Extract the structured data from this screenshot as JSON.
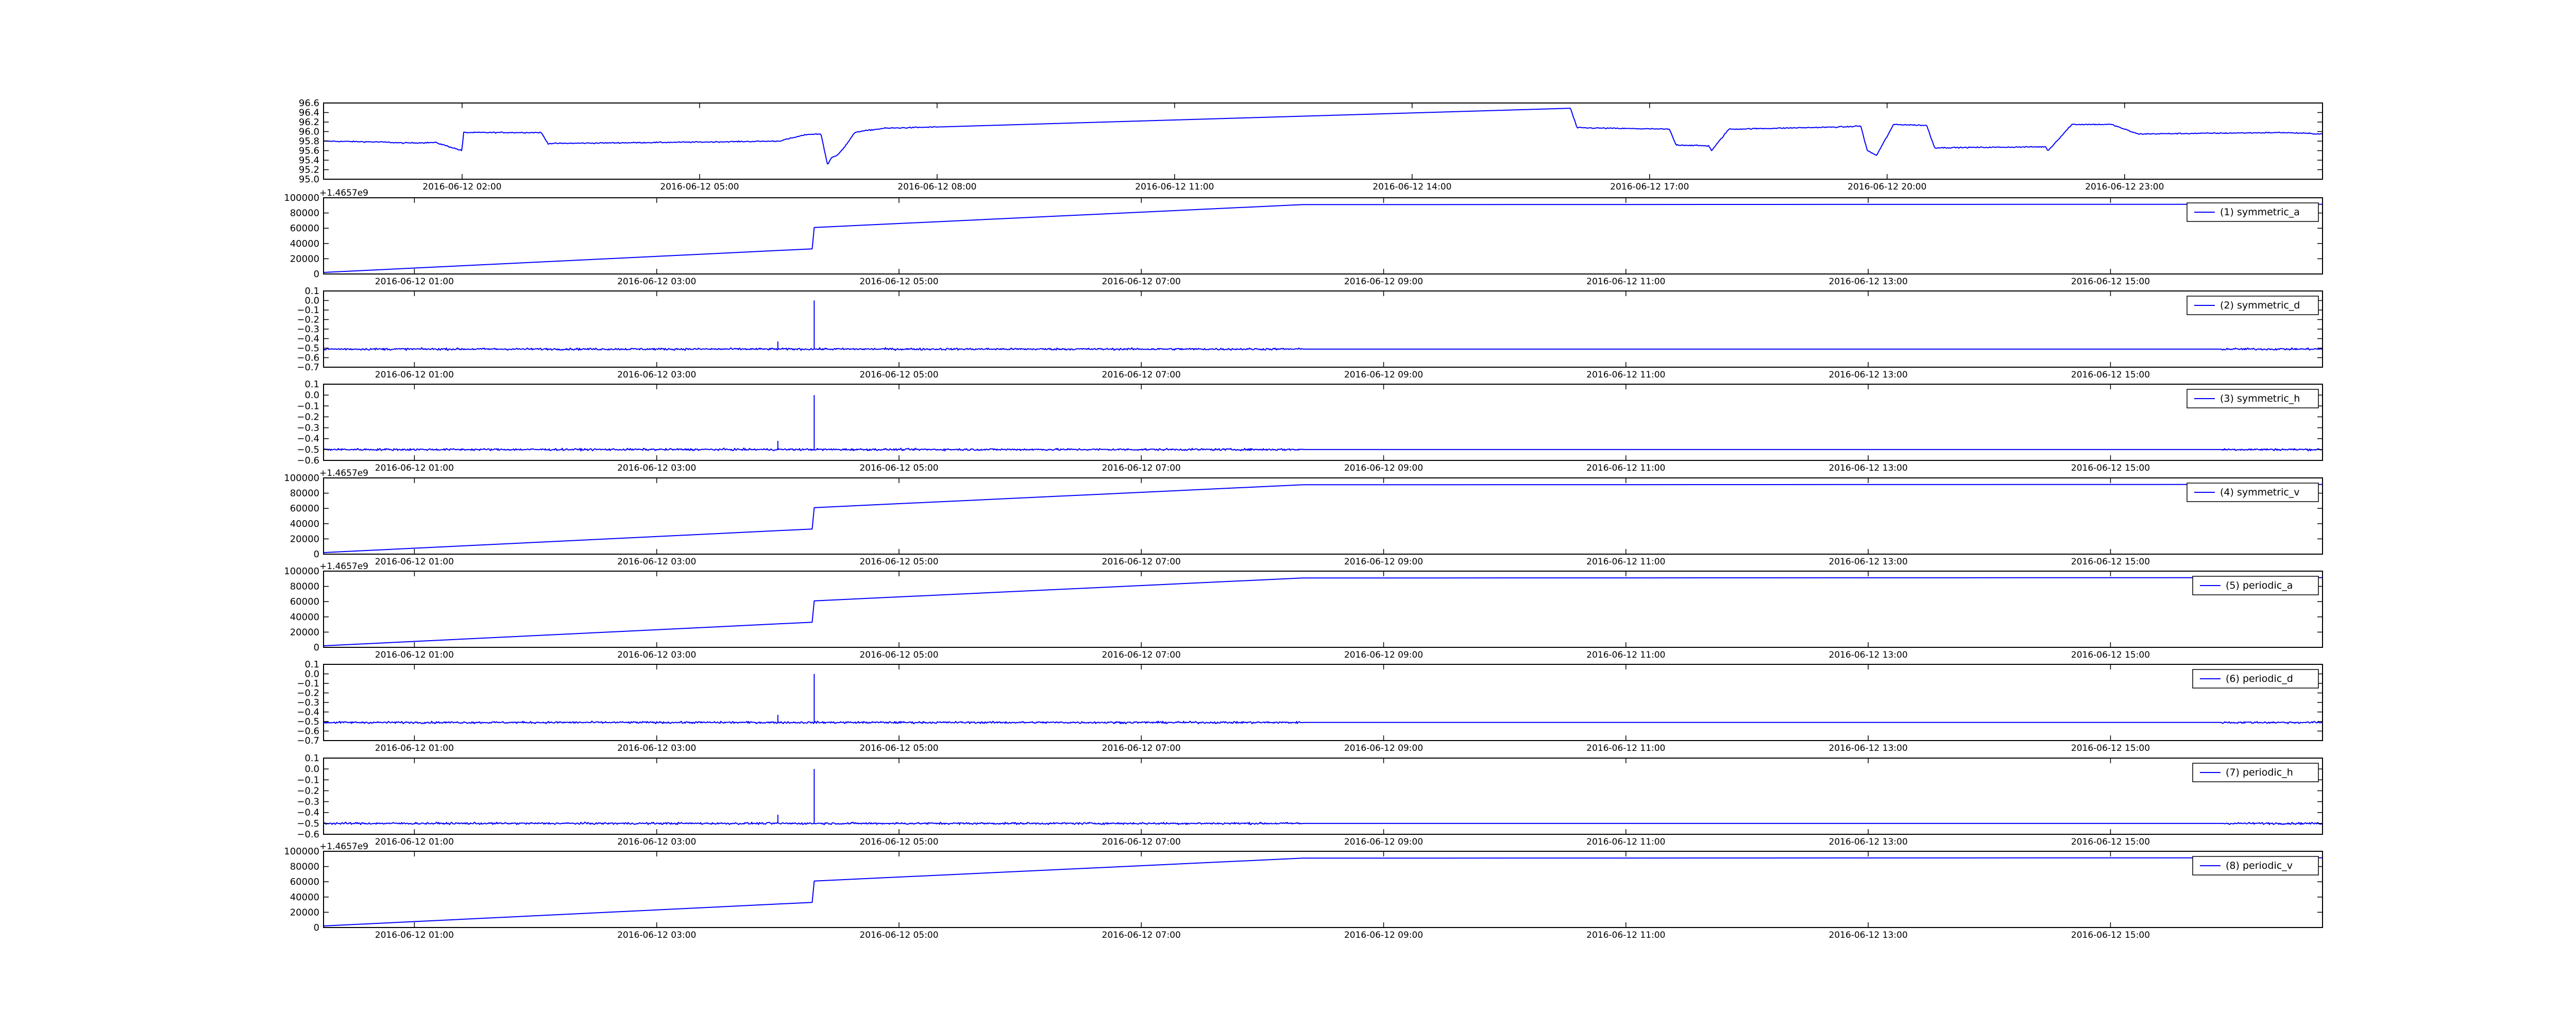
{
  "figure": {
    "line_color": "#0000ff",
    "axes_color": "#000000",
    "background": "#ffffff"
  },
  "chart_data": [
    {
      "type": "line",
      "title": "",
      "legend": null,
      "ylim": [
        95.0,
        96.6
      ],
      "yticks": [
        "95.0",
        "95.2",
        "95.4",
        "95.6",
        "95.8",
        "96.0",
        "96.2",
        "96.4",
        "96.6"
      ],
      "xlim": [
        "2016-06-12 00:15",
        "2016-06-13 01:30"
      ],
      "xticks": [
        "2016-06-12 02:00",
        "2016-06-12 05:00",
        "2016-06-12 08:00",
        "2016-06-12 11:00",
        "2016-06-12 14:00",
        "2016-06-12 17:00",
        "2016-06-12 20:00",
        "2016-06-12 23:00"
      ],
      "series": [
        {
          "x": [
            "2016-06-12 00:15",
            "2016-06-12 01:00",
            "2016-06-12 01:15",
            "2016-06-12 01:40",
            "2016-06-12 02:00",
            "2016-06-12 02:01",
            "2016-06-12 03:00",
            "2016-06-12 03:05",
            "2016-06-12 05:00",
            "2016-06-12 06:00",
            "2016-06-12 06:20",
            "2016-06-12 06:21",
            "2016-06-12 06:32",
            "2016-06-12 06:37",
            "2016-06-12 06:40",
            "2016-06-12 06:44",
            "2016-06-12 06:50",
            "2016-06-12 06:58",
            "2016-06-12 07:20",
            "2016-06-12 08:05",
            "2016-06-12 16:00",
            "2016-06-12 16:05",
            "2016-06-12 17:15",
            "2016-06-12 17:20",
            "2016-06-12 17:45",
            "2016-06-12 17:47",
            "2016-06-12 18:00",
            "2016-06-12 19:30",
            "2016-06-12 19:40",
            "2016-06-12 19:45",
            "2016-06-12 19:52",
            "2016-06-12 20:05",
            "2016-06-12 20:30",
            "2016-06-12 20:36",
            "2016-06-12 22:00",
            "2016-06-12 22:02",
            "2016-06-12 22:20",
            "2016-06-12 22:50",
            "2016-06-12 23:10",
            "2016-06-13 01:00",
            "2016-06-13 01:30"
          ],
          "values": [
            95.8,
            95.78,
            95.76,
            95.77,
            95.6,
            95.98,
            95.98,
            95.75,
            95.78,
            95.8,
            95.93,
            95.94,
            95.95,
            95.3,
            95.45,
            95.5,
            95.68,
            95.99,
            96.07,
            96.1,
            96.49,
            96.08,
            96.05,
            95.72,
            95.7,
            95.6,
            96.05,
            96.1,
            96.12,
            95.6,
            95.5,
            96.15,
            96.13,
            95.66,
            95.68,
            95.6,
            96.15,
            96.15,
            95.95,
            95.98,
            95.95
          ]
        }
      ],
      "noise": "small"
    },
    {
      "type": "line",
      "title": "",
      "offset_label": "+1.4657e9",
      "ylim": [
        0,
        100000
      ],
      "yticks": [
        "0",
        "20000",
        "40000",
        "60000",
        "80000",
        "100000"
      ],
      "xlim": [
        "2016-06-12 00:15",
        "2016-06-12 16:45"
      ],
      "xticks": [
        "2016-06-12 01:00",
        "2016-06-12 03:00",
        "2016-06-12 05:00",
        "2016-06-12 07:00",
        "2016-06-12 09:00",
        "2016-06-12 11:00",
        "2016-06-12 13:00",
        "2016-06-12 15:00"
      ],
      "legend": "(1) symmetric_a",
      "series": [
        {
          "x": [
            "2016-06-12 00:15",
            "2016-06-12 04:17",
            "2016-06-12 04:18",
            "2016-06-12 08:20",
            "2016-06-12 16:45"
          ],
          "values": [
            2000,
            33000,
            61000,
            91000,
            91500
          ]
        }
      ],
      "noise": "none"
    },
    {
      "type": "line",
      "title": "",
      "ylim": [
        -0.7,
        0.1
      ],
      "yticks": [
        "−0.7",
        "−0.6",
        "−0.5",
        "−0.4",
        "−0.3",
        "−0.2",
        "−0.1",
        "0.0",
        "0.1"
      ],
      "xlim": [
        "2016-06-12 00:15",
        "2016-06-12 16:45"
      ],
      "xticks": [
        "2016-06-12 01:00",
        "2016-06-12 03:00",
        "2016-06-12 05:00",
        "2016-06-12 07:00",
        "2016-06-12 09:00",
        "2016-06-12 11:00",
        "2016-06-12 13:00",
        "2016-06-12 15:00"
      ],
      "legend": "(2) symmetric_d",
      "series": [
        {
          "x": [
            "2016-06-12 00:15",
            "2016-06-12 08:20",
            "2016-06-12 15:55",
            "2016-06-12 16:45"
          ],
          "values": [
            -0.51,
            -0.51,
            -0.51,
            -0.51
          ]
        }
      ],
      "noise": "dense",
      "dense_ranges": [
        [
          "2016-06-12 00:15",
          "2016-06-12 08:20"
        ],
        [
          "2016-06-12 15:55",
          "2016-06-12 16:45"
        ]
      ],
      "spikes": [
        {
          "x": "2016-06-12 04:18",
          "value": 0.0
        },
        {
          "x": "2016-06-12 04:00",
          "value": -0.43
        }
      ]
    },
    {
      "type": "line",
      "title": "",
      "ylim": [
        -0.6,
        0.1
      ],
      "yticks": [
        "−0.6",
        "−0.5",
        "−0.4",
        "−0.3",
        "−0.2",
        "−0.1",
        "0.0",
        "0.1"
      ],
      "xlim": [
        "2016-06-12 00:15",
        "2016-06-12 16:45"
      ],
      "xticks": [
        "2016-06-12 01:00",
        "2016-06-12 03:00",
        "2016-06-12 05:00",
        "2016-06-12 07:00",
        "2016-06-12 09:00",
        "2016-06-12 11:00",
        "2016-06-12 13:00",
        "2016-06-12 15:00"
      ],
      "legend": "(3) symmetric_h",
      "series": [
        {
          "x": [
            "2016-06-12 00:15",
            "2016-06-12 08:20",
            "2016-06-12 15:55",
            "2016-06-12 16:45"
          ],
          "values": [
            -0.5,
            -0.5,
            -0.5,
            -0.5
          ]
        }
      ],
      "noise": "dense",
      "dense_ranges": [
        [
          "2016-06-12 00:15",
          "2016-06-12 08:20"
        ],
        [
          "2016-06-12 15:55",
          "2016-06-12 16:45"
        ]
      ],
      "spikes": [
        {
          "x": "2016-06-12 04:18",
          "value": 0.0
        },
        {
          "x": "2016-06-12 04:00",
          "value": -0.42
        }
      ]
    },
    {
      "type": "line",
      "title": "",
      "offset_label": "+1.4657e9",
      "ylim": [
        0,
        100000
      ],
      "yticks": [
        "0",
        "20000",
        "40000",
        "60000",
        "80000",
        "100000"
      ],
      "xlim": [
        "2016-06-12 00:15",
        "2016-06-12 16:45"
      ],
      "xticks": [
        "2016-06-12 01:00",
        "2016-06-12 03:00",
        "2016-06-12 05:00",
        "2016-06-12 07:00",
        "2016-06-12 09:00",
        "2016-06-12 11:00",
        "2016-06-12 13:00",
        "2016-06-12 15:00"
      ],
      "legend": "(4) symmetric_v",
      "series": [
        {
          "x": [
            "2016-06-12 00:15",
            "2016-06-12 04:17",
            "2016-06-12 04:18",
            "2016-06-12 08:20",
            "2016-06-12 16:45"
          ],
          "values": [
            2000,
            33000,
            61000,
            91000,
            91500
          ]
        }
      ],
      "noise": "none"
    },
    {
      "type": "line",
      "title": "",
      "offset_label": "+1.4657e9",
      "ylim": [
        0,
        100000
      ],
      "yticks": [
        "0",
        "20000",
        "40000",
        "60000",
        "80000",
        "100000"
      ],
      "xlim": [
        "2016-06-12 00:15",
        "2016-06-12 16:45"
      ],
      "xticks": [
        "2016-06-12 01:00",
        "2016-06-12 03:00",
        "2016-06-12 05:00",
        "2016-06-12 07:00",
        "2016-06-12 09:00",
        "2016-06-12 11:00",
        "2016-06-12 13:00",
        "2016-06-12 15:00"
      ],
      "legend": "(5) periodic_a",
      "series": [
        {
          "x": [
            "2016-06-12 00:15",
            "2016-06-12 04:17",
            "2016-06-12 04:18",
            "2016-06-12 08:20",
            "2016-06-12 16:45"
          ],
          "values": [
            2000,
            33000,
            61000,
            91000,
            91500
          ]
        }
      ],
      "noise": "none"
    },
    {
      "type": "line",
      "title": "",
      "ylim": [
        -0.7,
        0.1
      ],
      "yticks": [
        "−0.7",
        "−0.6",
        "−0.5",
        "−0.4",
        "−0.3",
        "−0.2",
        "−0.1",
        "0.0",
        "0.1"
      ],
      "xlim": [
        "2016-06-12 00:15",
        "2016-06-12 16:45"
      ],
      "xticks": [
        "2016-06-12 01:00",
        "2016-06-12 03:00",
        "2016-06-12 05:00",
        "2016-06-12 07:00",
        "2016-06-12 09:00",
        "2016-06-12 11:00",
        "2016-06-12 13:00",
        "2016-06-12 15:00"
      ],
      "legend": "(6) periodic_d",
      "series": [
        {
          "x": [
            "2016-06-12 00:15",
            "2016-06-12 08:20",
            "2016-06-12 15:55",
            "2016-06-12 16:45"
          ],
          "values": [
            -0.51,
            -0.51,
            -0.51,
            -0.51
          ]
        }
      ],
      "noise": "dense",
      "dense_ranges": [
        [
          "2016-06-12 00:15",
          "2016-06-12 08:20"
        ],
        [
          "2016-06-12 15:55",
          "2016-06-12 16:45"
        ]
      ],
      "spikes": [
        {
          "x": "2016-06-12 04:18",
          "value": 0.0
        },
        {
          "x": "2016-06-12 04:00",
          "value": -0.43
        }
      ]
    },
    {
      "type": "line",
      "title": "",
      "ylim": [
        -0.6,
        0.1
      ],
      "yticks": [
        "−0.6",
        "−0.5",
        "−0.4",
        "−0.3",
        "−0.2",
        "−0.1",
        "0.0",
        "0.1"
      ],
      "xlim": [
        "2016-06-12 00:15",
        "2016-06-12 16:45"
      ],
      "xticks": [
        "2016-06-12 01:00",
        "2016-06-12 03:00",
        "2016-06-12 05:00",
        "2016-06-12 07:00",
        "2016-06-12 09:00",
        "2016-06-12 11:00",
        "2016-06-12 13:00",
        "2016-06-12 15:00"
      ],
      "legend": "(7) periodic_h",
      "series": [
        {
          "x": [
            "2016-06-12 00:15",
            "2016-06-12 08:20",
            "2016-06-12 15:55",
            "2016-06-12 16:45"
          ],
          "values": [
            -0.5,
            -0.5,
            -0.5,
            -0.5
          ]
        }
      ],
      "noise": "dense",
      "dense_ranges": [
        [
          "2016-06-12 00:15",
          "2016-06-12 08:20"
        ],
        [
          "2016-06-12 15:55",
          "2016-06-12 16:45"
        ]
      ],
      "spikes": [
        {
          "x": "2016-06-12 04:18",
          "value": 0.0
        },
        {
          "x": "2016-06-12 04:00",
          "value": -0.42
        }
      ]
    },
    {
      "type": "line",
      "title": "",
      "offset_label": "+1.4657e9",
      "ylim": [
        0,
        100000
      ],
      "yticks": [
        "0",
        "20000",
        "40000",
        "60000",
        "80000",
        "100000"
      ],
      "xlim": [
        "2016-06-12 00:15",
        "2016-06-12 16:45"
      ],
      "xticks": [
        "2016-06-12 01:00",
        "2016-06-12 03:00",
        "2016-06-12 05:00",
        "2016-06-12 07:00",
        "2016-06-12 09:00",
        "2016-06-12 11:00",
        "2016-06-12 13:00",
        "2016-06-12 15:00"
      ],
      "legend": "(8) periodic_v",
      "series": [
        {
          "x": [
            "2016-06-12 00:15",
            "2016-06-12 04:17",
            "2016-06-12 04:18",
            "2016-06-12 08:20",
            "2016-06-12 16:45"
          ],
          "values": [
            2000,
            33000,
            61000,
            91000,
            91500
          ]
        }
      ],
      "noise": "none"
    }
  ]
}
